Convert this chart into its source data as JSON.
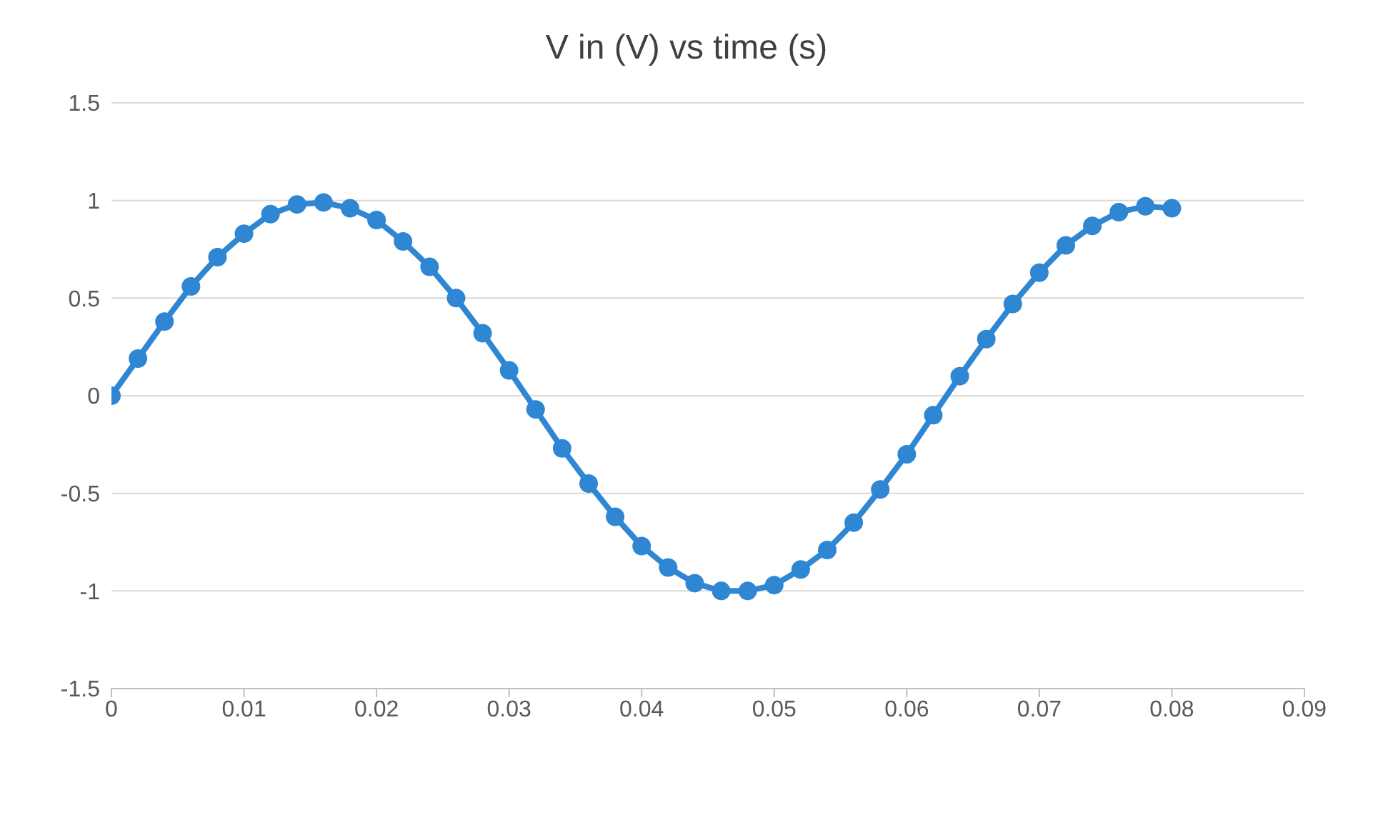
{
  "chart_data": {
    "type": "line",
    "title": "V in (V) vs time (s)",
    "x": [
      0,
      0.002,
      0.004,
      0.006,
      0.008,
      0.01,
      0.012,
      0.014,
      0.016,
      0.018,
      0.02,
      0.022,
      0.024,
      0.026,
      0.028,
      0.03,
      0.032,
      0.034,
      0.036,
      0.038,
      0.04,
      0.042,
      0.044,
      0.046,
      0.048,
      0.05,
      0.052,
      0.054,
      0.056,
      0.058,
      0.06,
      0.062,
      0.064,
      0.066,
      0.068,
      0.07,
      0.072,
      0.074,
      0.076,
      0.078,
      0.08
    ],
    "series": [
      {
        "color": "#2f86d3",
        "values": [
          0,
          0.19,
          0.38,
          0.56,
          0.71,
          0.83,
          0.93,
          0.98,
          0.99,
          0.96,
          0.9,
          0.79,
          0.66,
          0.5,
          0.32,
          0.13,
          -0.07,
          -0.27,
          -0.45,
          -0.62,
          -0.77,
          -0.88,
          -0.96,
          -1,
          -1,
          -0.97,
          -0.89,
          -0.79,
          -0.65,
          -0.48,
          -0.3,
          -0.1,
          0.1,
          0.29,
          0.47,
          0.63,
          0.77,
          0.87,
          0.94,
          0.97,
          0.96
        ]
      }
    ],
    "xlim": [
      0,
      0.09
    ],
    "xticks": [
      0,
      0.01,
      0.02,
      0.03,
      0.04,
      0.05,
      0.06,
      0.07,
      0.08,
      0.09
    ],
    "ylim": [
      -1.5,
      1.5
    ],
    "yticks": [
      -1.5,
      -1,
      -0.5,
      0,
      0.5,
      1,
      1.5
    ],
    "grid": "y",
    "marker": "circle",
    "line_style": "solid"
  }
}
